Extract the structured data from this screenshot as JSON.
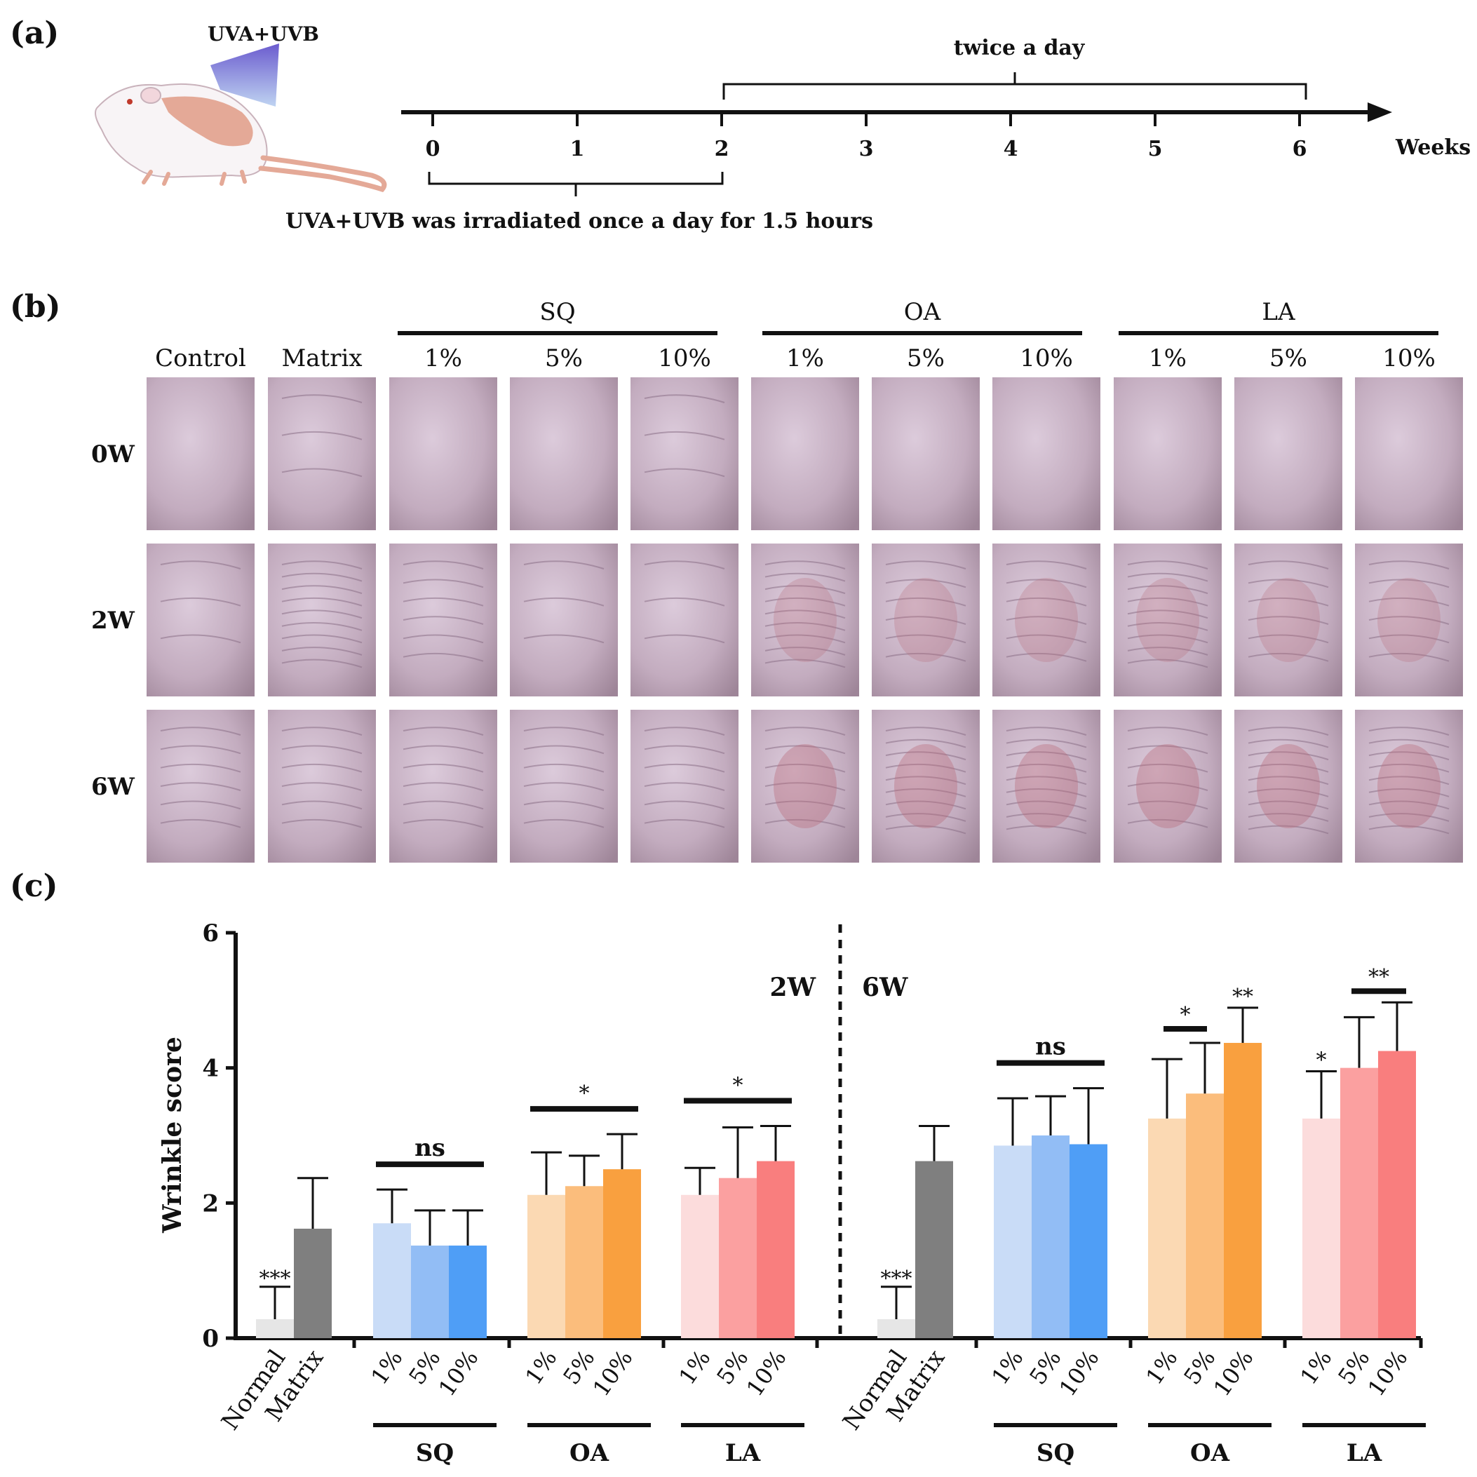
{
  "panels": {
    "a": "(a)",
    "b": "(b)",
    "c": "(c)"
  },
  "timeline": {
    "lamp_label": "UVA+UVB",
    "ticks": [
      "0",
      "1",
      "2",
      "3",
      "4",
      "5",
      "6"
    ],
    "unit": "Weeks",
    "phase1_text": "UVA+UVB was irradiated once a day for 1.5 hours",
    "phase2_text": "twice a day"
  },
  "photo_grid": {
    "group_headers": [
      "SQ",
      "OA",
      "LA"
    ],
    "columns": [
      "Control",
      "Matrix",
      "1%",
      "5%",
      "10%",
      "1%",
      "5%",
      "10%",
      "1%",
      "5%",
      "10%"
    ],
    "rows": [
      "0W",
      "2W",
      "6W"
    ]
  },
  "colors": {
    "normal": "#e6e6e6",
    "matrix": "#7f7f7f",
    "sq": [
      "#c9dcf7",
      "#92bdf5",
      "#4f9ef6"
    ],
    "oa": [
      "#fbd9b3",
      "#fbbd7c",
      "#f9a03f"
    ],
    "la": [
      "#fcdcdc",
      "#fba0a0",
      "#f97e7e"
    ],
    "skin": "#cbb6c7"
  },
  "chart_data": {
    "type": "bar",
    "title": "",
    "ylabel": "Wrinkle score",
    "ylim": [
      0,
      6
    ],
    "yticks": [
      "0",
      "2",
      "4",
      "6"
    ],
    "section_labels": [
      "2W",
      "6W"
    ],
    "group_labels": [
      "SQ",
      "OA",
      "LA"
    ],
    "concentration_labels": [
      "1%",
      "5%",
      "10%"
    ],
    "control_labels": [
      "Normal",
      "Matrix"
    ],
    "series": [
      {
        "name": "2W",
        "controls": {
          "values": [
            0.28,
            1.62
          ],
          "errors": [
            0.48,
            0.75
          ],
          "sig": "***"
        },
        "groups": [
          {
            "name": "SQ",
            "values": [
              1.7,
              1.37,
              1.37
            ],
            "errors": [
              0.5,
              0.52,
              0.52
            ],
            "sig": "ns",
            "sig_span": "all"
          },
          {
            "name": "OA",
            "values": [
              2.12,
              2.25,
              2.5
            ],
            "errors": [
              0.63,
              0.45,
              0.52
            ],
            "sig": "*",
            "sig_span": "all"
          },
          {
            "name": "LA",
            "values": [
              2.12,
              2.37,
              2.62
            ],
            "errors": [
              0.4,
              0.75,
              0.52
            ],
            "sig": "*",
            "sig_span": "all"
          }
        ]
      },
      {
        "name": "6W",
        "controls": {
          "values": [
            0.28,
            2.62
          ],
          "errors": [
            0.48,
            0.52
          ],
          "sig": "***"
        },
        "groups": [
          {
            "name": "SQ",
            "values": [
              2.85,
              3.0,
              2.87
            ],
            "errors": [
              0.7,
              0.58,
              0.83
            ],
            "sig": "ns",
            "sig_span": "all"
          },
          {
            "name": "OA",
            "values": [
              3.25,
              3.62,
              4.37
            ],
            "errors": [
              0.88,
              0.75,
              0.52
            ],
            "sig": "*",
            "sig_span": "first-two",
            "sig2": "**"
          },
          {
            "name": "LA",
            "values": [
              3.25,
              4.0,
              4.25
            ],
            "errors": [
              0.7,
              0.75,
              0.72
            ],
            "sig": "*",
            "sig_span": "first",
            "sig2": "**"
          }
        ]
      }
    ]
  }
}
